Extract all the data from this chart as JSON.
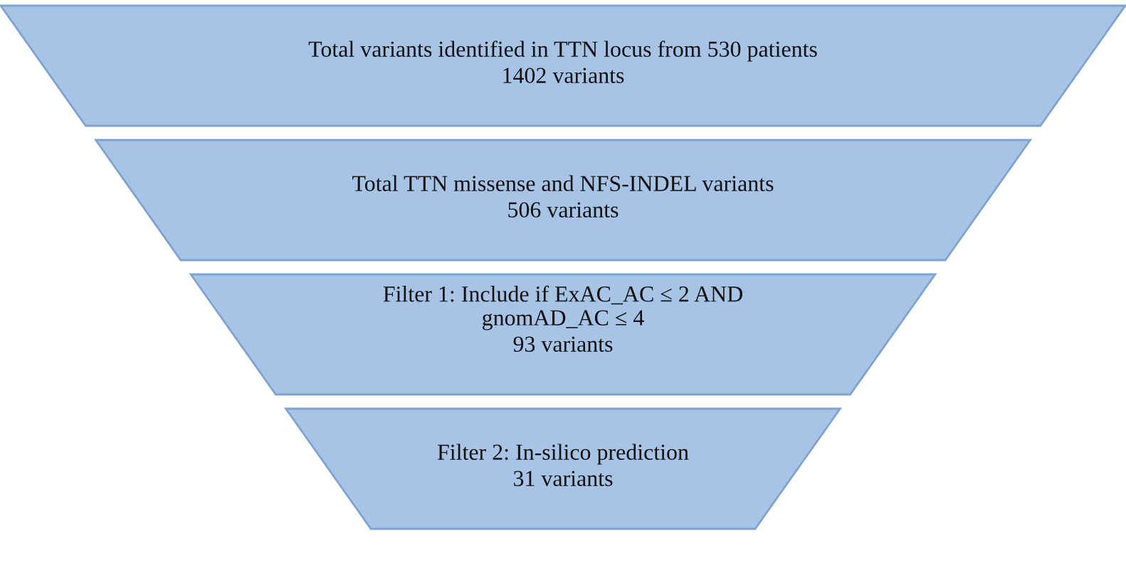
{
  "chart_data": {
    "type": "other",
    "categories": [
      "Total variants identified in TTN locus from 530 patients",
      "Total TTN missense and NFS-INDEL variants",
      "Filter 1: Include if ExAC_AC ≤ 2 AND\ngnomAD_AC ≤ 4",
      "Filter 2: In-silico prediction"
    ],
    "values": [
      1402,
      506,
      93,
      31
    ],
    "value_labels": [
      "1402 variants",
      "506 variants",
      "93 variants",
      "31 variants"
    ],
    "colors": [
      "#a7c4e6",
      "#a7c4e6",
      "#a7c4e6",
      "#a7c4e6"
    ]
  }
}
